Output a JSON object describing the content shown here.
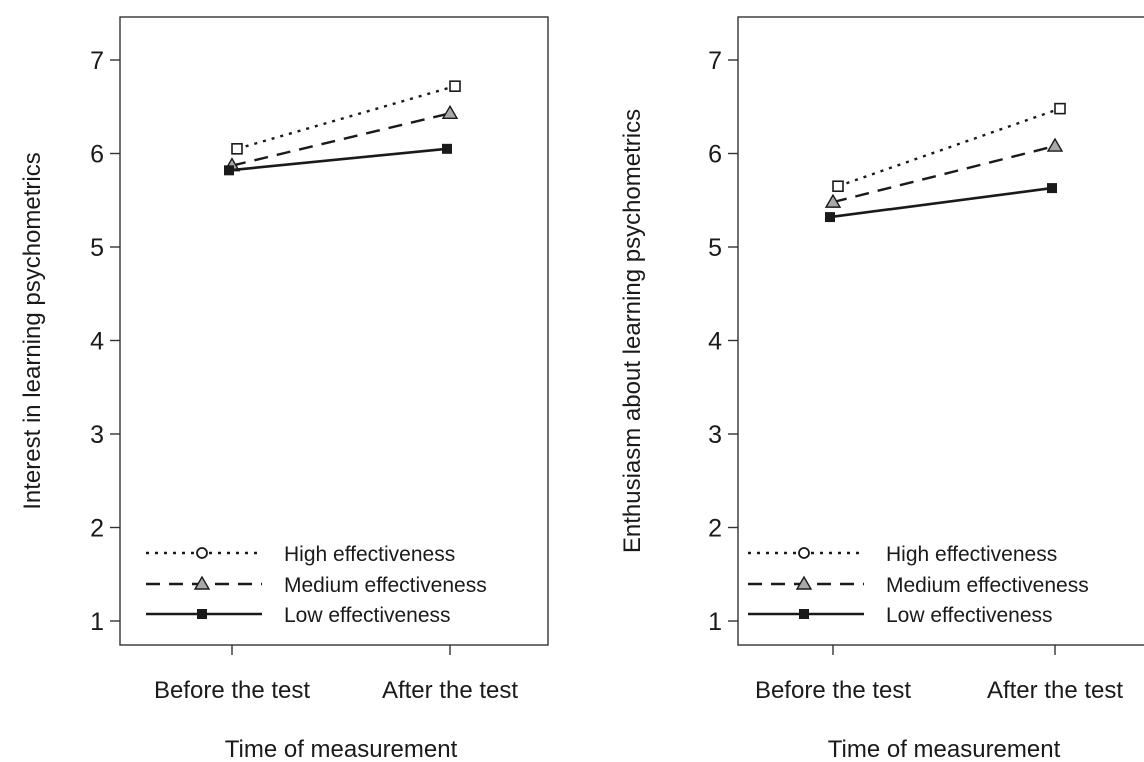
{
  "chart_data": [
    {
      "type": "line",
      "categories": [
        "Before the test",
        "After the test"
      ],
      "xlabel": "Time of measurement",
      "ylabel": "Interest in learning psychometrics",
      "ylim": [
        1,
        7
      ],
      "yticks": [
        1,
        2,
        3,
        4,
        5,
        6,
        7
      ],
      "grid": false,
      "legend": {
        "position": "bottom-left"
      },
      "series": [
        {
          "name": "High effectiveness",
          "values": [
            6.05,
            6.72
          ],
          "line": "dotted",
          "marker": "square",
          "legend_marker": "circle",
          "color": "#1a1a1a"
        },
        {
          "name": "Medium effectiveness",
          "values": [
            5.87,
            6.43
          ],
          "line": "dashed",
          "marker": "triangle",
          "color": "#1a1a1a"
        },
        {
          "name": "Low effectiveness",
          "values": [
            5.82,
            6.05
          ],
          "line": "solid",
          "marker": "filled-square",
          "color": "#1a1a1a"
        }
      ]
    },
    {
      "type": "line",
      "categories": [
        "Before the test",
        "After the test"
      ],
      "xlabel": "Time of measurement",
      "ylabel": "Enthusiasm about learning psychometrics",
      "ylim": [
        1,
        7
      ],
      "yticks": [
        1,
        2,
        3,
        4,
        5,
        6,
        7
      ],
      "grid": false,
      "legend": {
        "position": "bottom-left"
      },
      "series": [
        {
          "name": "High effectiveness",
          "values": [
            5.65,
            6.48
          ],
          "line": "dotted",
          "marker": "square",
          "legend_marker": "circle",
          "color": "#1a1a1a"
        },
        {
          "name": "Medium effectiveness",
          "values": [
            5.48,
            6.08
          ],
          "line": "dashed",
          "marker": "triangle",
          "color": "#1a1a1a"
        },
        {
          "name": "Low effectiveness",
          "values": [
            5.32,
            5.63
          ],
          "line": "solid",
          "marker": "filled-square",
          "color": "#1a1a1a"
        }
      ]
    }
  ]
}
